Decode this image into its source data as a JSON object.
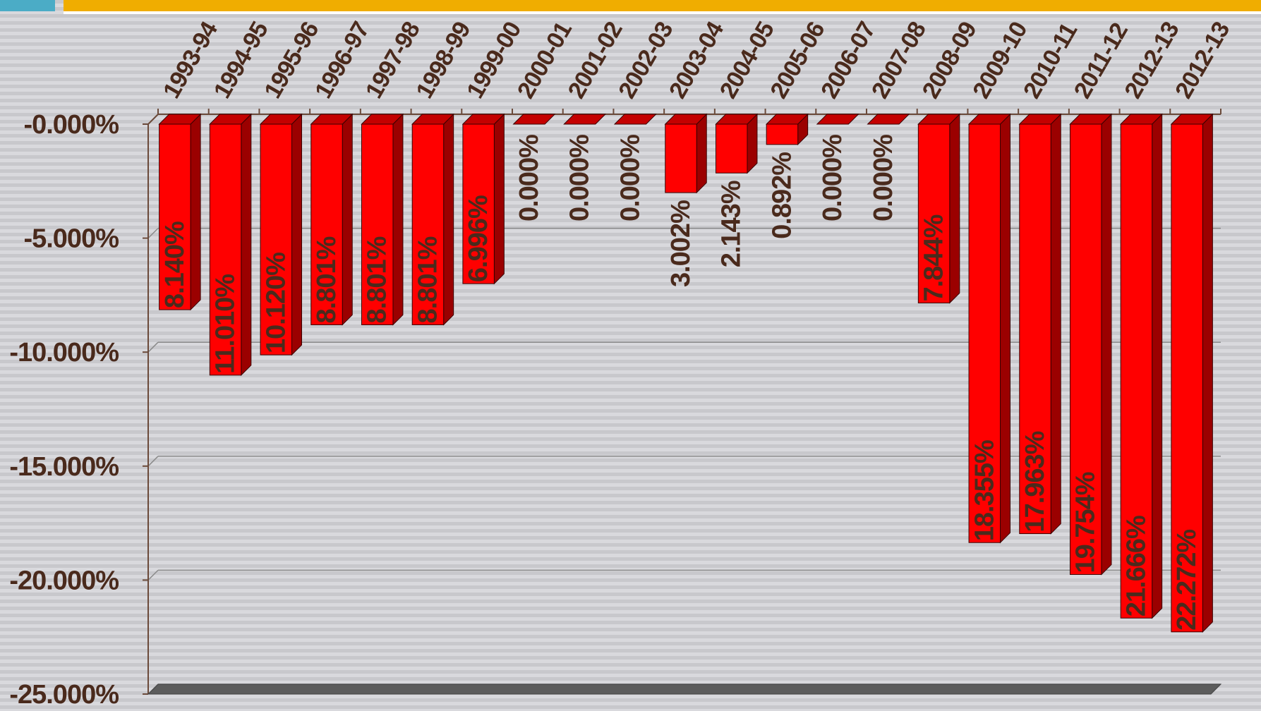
{
  "chart_data": {
    "type": "bar",
    "categories": [
      "1993-94",
      "1994-95",
      "1995-96",
      "1996-97",
      "1997-98",
      "1998-99",
      "1999-00",
      "2000-01",
      "2001-02",
      "2002-03",
      "2003-04",
      "2004-05",
      "2005-06",
      "2006-07",
      "2007-08",
      "2008-09",
      "2009-10",
      "2010-11",
      "2011-12",
      "2012-13",
      "2012-13"
    ],
    "values": [
      -8.14,
      -11.01,
      -10.12,
      -8.801,
      -8.801,
      -8.801,
      -6.996,
      0,
      0,
      0,
      -3.002,
      -2.143,
      -0.892,
      0,
      0,
      -7.844,
      -18.355,
      -17.963,
      -19.754,
      -21.666,
      -22.272
    ],
    "data_labels": [
      "8.140%",
      "11.010%",
      "10.120%",
      "8.801%",
      "8.801%",
      "8.801%",
      "6.996%",
      "0.000%",
      "0.000%",
      "0.000%",
      "3.002%",
      "2.143%",
      "0.892%",
      "0.000%",
      "0.000%",
      "7.844%",
      "18.355%",
      "17.963%",
      "19.754%",
      "21.666%",
      "22.272%"
    ],
    "y_ticks": [
      "-0.000%",
      "-5.000%",
      "-10.000%",
      "-15.000%",
      "-20.000%",
      "-25.000%"
    ],
    "ylim": [
      -25,
      0
    ],
    "title": "",
    "xlabel": "",
    "ylabel": "",
    "grid": true,
    "colors": {
      "bar": "#ff0000",
      "bar_side": "#9b0000",
      "bar_top": "#c40000",
      "text": "#4a2a1c"
    }
  }
}
